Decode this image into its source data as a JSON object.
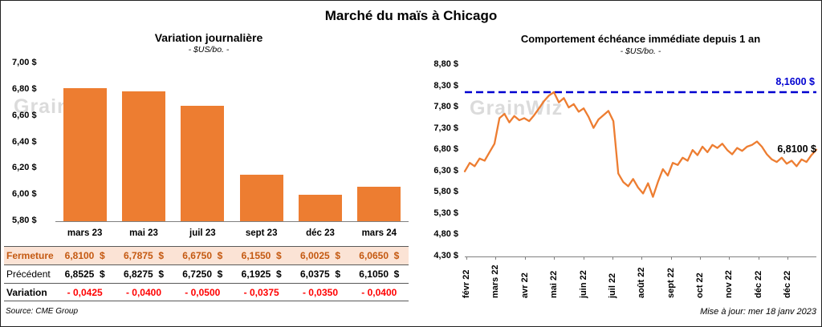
{
  "page": {
    "title": "Marché du maïs à Chicago",
    "source": "Source: CME Group",
    "updated": "Mise à jour: mer 18 janv 2023",
    "watermark": "GrainWiz"
  },
  "colors": {
    "accent_orange": "#ED7D31",
    "fermeture_bg": "#FBE3D5",
    "fermeture_text": "#C45911",
    "variation_red": "#FF0000",
    "reference_blue": "#0000D0"
  },
  "chart_data": [
    {
      "type": "bar",
      "title": "Variation journalière",
      "subtitle": "- $US/bo. -",
      "categories": [
        "mars 23",
        "mai 23",
        "juil 23",
        "sept 23",
        "déc 23",
        "mars 24"
      ],
      "values": [
        6.81,
        6.7875,
        6.675,
        6.155,
        6.0025,
        6.065
      ],
      "ylim": [
        5.8,
        7.0
      ],
      "ytick_step": 0.2,
      "yticks": [
        "7,00 $",
        "6,80 $",
        "6,60 $",
        "6,40 $",
        "6,20 $",
        "6,00 $",
        "5,80 $"
      ],
      "bar_color": "#ED7D31",
      "grid": false
    },
    {
      "type": "line",
      "title": "Comportement échéance immédiate depuis 1 an",
      "subtitle": "- $US/bo. -",
      "x_labels": [
        "févr 22",
        "mars 22",
        "avr 22",
        "mai 22",
        "juin 22",
        "juil 22",
        "août 22",
        "sept 22",
        "oct 22",
        "nov 22",
        "déc 22",
        "déc 22"
      ],
      "ylim": [
        4.3,
        8.8
      ],
      "ytick_step": 0.5,
      "yticks": [
        "8,80 $",
        "8,30 $",
        "7,80 $",
        "7,30 $",
        "6,80 $",
        "6,30 $",
        "5,80 $",
        "5,30 $",
        "4,80 $",
        "4,30 $"
      ],
      "line_color": "#ED7D31",
      "reference_line": {
        "value": 8.16,
        "label": "8,1600 $"
      },
      "end_label": "6,8100 $",
      "last_value": 6.81,
      "values": [
        6.3,
        6.5,
        6.42,
        6.6,
        6.55,
        6.75,
        6.95,
        7.55,
        7.65,
        7.45,
        7.6,
        7.5,
        7.55,
        7.48,
        7.62,
        7.78,
        7.95,
        8.08,
        8.16,
        7.92,
        8.02,
        7.8,
        7.88,
        7.7,
        7.78,
        7.58,
        7.32,
        7.52,
        7.62,
        7.72,
        7.48,
        6.25,
        6.05,
        5.95,
        6.12,
        5.92,
        5.78,
        6.02,
        5.7,
        6.05,
        6.35,
        6.2,
        6.5,
        6.45,
        6.62,
        6.55,
        6.8,
        6.68,
        6.88,
        6.75,
        6.92,
        6.85,
        6.95,
        6.8,
        6.7,
        6.85,
        6.78,
        6.88,
        6.92,
        7.0,
        6.88,
        6.7,
        6.58,
        6.52,
        6.62,
        6.48,
        6.55,
        6.42,
        6.58,
        6.52,
        6.68,
        6.81
      ],
      "grid": false
    }
  ],
  "table": {
    "rows": [
      {
        "label": "Fermeture",
        "style": "fermeture",
        "values": [
          "6,8100  $",
          "6,7875  $",
          "6,6750  $",
          "6,1550  $",
          "6,0025  $",
          "6,0650  $"
        ]
      },
      {
        "label": "Précédent",
        "style": "precedent",
        "values": [
          "6,8525  $",
          "6,8275  $",
          "6,7250  $",
          "6,1925  $",
          "6,0375  $",
          "6,1050  $"
        ]
      },
      {
        "label": "Variation",
        "style": "variation",
        "values": [
          "- 0,0425",
          "- 0,0400",
          "- 0,0500",
          "- 0,0375",
          "- 0,0350",
          "- 0,0400"
        ]
      }
    ]
  }
}
